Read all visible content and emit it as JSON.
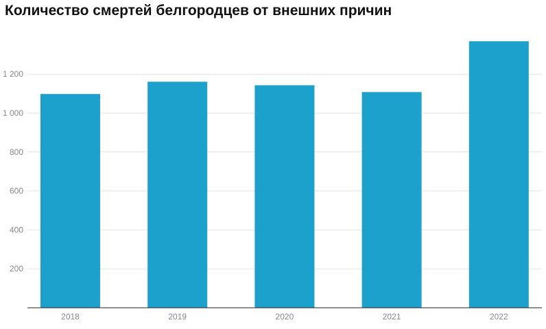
{
  "chart_data": {
    "type": "bar",
    "title": "Количество смертей белгородцев от внешних причин",
    "categories": [
      "2018",
      "2019",
      "2020",
      "2021",
      "2022"
    ],
    "values": [
      1098,
      1161,
      1143,
      1108,
      1369
    ],
    "yticks": [
      200,
      400,
      600,
      800,
      1000,
      1200
    ],
    "ytick_labels": [
      "200",
      "400",
      "600",
      "800",
      "1 000",
      "1 200"
    ],
    "ylim": [
      0,
      1390
    ],
    "xlabel": "",
    "ylabel": "",
    "grid": true,
    "bar_color": "#1ba1cb"
  }
}
